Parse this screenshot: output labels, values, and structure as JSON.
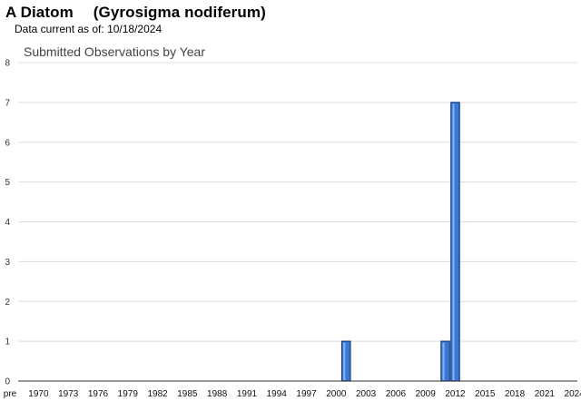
{
  "header": {
    "species_common": "A Diatom",
    "species_scientific": "(Gyrosigma nodiferum)",
    "data_current_label": "Data current as of:",
    "data_current_date": "10/18/2024"
  },
  "chart_data": {
    "type": "bar",
    "title": "Submitted Observations by Year",
    "xlabel": "",
    "ylabel": "",
    "ylim": [
      0,
      8
    ],
    "yticks": [
      0,
      1,
      2,
      3,
      4,
      5,
      6,
      7,
      8
    ],
    "grid": true,
    "bar_color": "#3a78d8",
    "bar_edge": "#1a3f7a",
    "categories": [
      "pre 1970",
      "1970",
      "1971",
      "1972",
      "1973",
      "1974",
      "1975",
      "1976",
      "1977",
      "1978",
      "1979",
      "1980",
      "1981",
      "1982",
      "1983",
      "1984",
      "1985",
      "1986",
      "1987",
      "1988",
      "1989",
      "1990",
      "1991",
      "1992",
      "1993",
      "1994",
      "1995",
      "1996",
      "1997",
      "1998",
      "1999",
      "2000",
      "2001",
      "2002",
      "2003",
      "2004",
      "2005",
      "2006",
      "2007",
      "2008",
      "2009",
      "2010",
      "2011",
      "2012",
      "2013",
      "2014",
      "2015",
      "2016",
      "2017",
      "2018",
      "2019",
      "2020",
      "2021",
      "2022",
      "2023",
      "2024"
    ],
    "tick_labels": [
      "pre",
      "1970",
      "1973",
      "1976",
      "1979",
      "1982",
      "1985",
      "1988",
      "1991",
      "1994",
      "1997",
      "2000",
      "2003",
      "2006",
      "2009",
      "2012",
      "2015",
      "2018",
      "2021",
      "2024"
    ],
    "values": [
      0,
      0,
      0,
      0,
      0,
      0,
      0,
      0,
      0,
      0,
      0,
      0,
      0,
      0,
      0,
      0,
      0,
      0,
      0,
      0,
      0,
      0,
      0,
      0,
      0,
      0,
      0,
      0,
      0,
      0,
      0,
      0,
      1,
      0,
      0,
      0,
      0,
      0,
      0,
      0,
      0,
      0,
      1,
      7,
      0,
      0,
      0,
      0,
      0,
      0,
      0,
      0,
      0,
      0,
      0,
      0
    ]
  }
}
